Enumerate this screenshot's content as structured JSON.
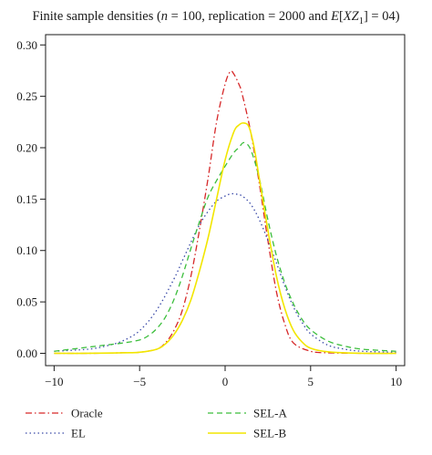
{
  "chart_data": {
    "type": "line",
    "title": {
      "prefix": "Finite sample densities (",
      "n_symbol": "n",
      "middle": " = 100, replication = 2000 and ",
      "e_symbol": "E",
      "bracket_open": "[",
      "xz_symbol": "XZ",
      "subscript": "1",
      "suffix": "] = 04)"
    },
    "xlabel": "",
    "ylabel": "",
    "xlim": [
      -10.5,
      10.5
    ],
    "ylim": [
      -0.012,
      0.31
    ],
    "xticks": [
      -10,
      -5,
      0,
      5,
      10
    ],
    "xtick_labels": [
      "−10",
      "−5",
      "0",
      "5",
      "10"
    ],
    "yticks": [
      0.0,
      0.05,
      0.1,
      0.15,
      0.2,
      0.25,
      0.3
    ],
    "ytick_labels": [
      "0.00",
      "0.05",
      "0.10",
      "0.15",
      "0.20",
      "0.25",
      "0.30"
    ],
    "grid": false,
    "legend_placement": "bottom",
    "series": [
      {
        "name": "Oracle",
        "color": "#d62728",
        "dash": "dashdot",
        "x": [
          -10,
          -8,
          -6,
          -5,
          -4,
          -3.5,
          -3,
          -2.5,
          -2,
          -1.5,
          -1,
          -0.5,
          0,
          0.3,
          0.5,
          0.8,
          1,
          1.5,
          2,
          2.5,
          3,
          3.5,
          4,
          5,
          6,
          8,
          10
        ],
        "y": [
          0.0,
          0.0,
          0.0005,
          0.001,
          0.004,
          0.01,
          0.022,
          0.042,
          0.075,
          0.12,
          0.17,
          0.225,
          0.262,
          0.274,
          0.272,
          0.262,
          0.252,
          0.215,
          0.165,
          0.11,
          0.06,
          0.028,
          0.01,
          0.002,
          0.0005,
          0.0,
          0.0
        ]
      },
      {
        "name": "EL",
        "color": "#3b4ba8",
        "dash": "dotted",
        "x": [
          -10,
          -8,
          -7,
          -6,
          -5,
          -4,
          -3,
          -2.5,
          -2,
          -1.5,
          -1,
          -0.5,
          0,
          0.3,
          0.6,
          1,
          1.5,
          2,
          2.5,
          3,
          3.5,
          4,
          4.5,
          5,
          6,
          7,
          8,
          10
        ],
        "y": [
          0.002,
          0.004,
          0.007,
          0.012,
          0.022,
          0.042,
          0.072,
          0.09,
          0.108,
          0.125,
          0.138,
          0.148,
          0.153,
          0.155,
          0.155,
          0.153,
          0.145,
          0.13,
          0.11,
          0.088,
          0.065,
          0.045,
          0.03,
          0.019,
          0.008,
          0.004,
          0.002,
          0.001
        ]
      },
      {
        "name": "SEL-A",
        "color": "#3cbe3c",
        "dash": "dashed",
        "x": [
          -10,
          -8,
          -7,
          -6,
          -5,
          -4.5,
          -4,
          -3.5,
          -3,
          -2.5,
          -2,
          -1.5,
          -1,
          -0.5,
          0,
          0.5,
          0.8,
          1.1,
          1.5,
          2,
          2.5,
          3,
          3.5,
          4,
          4.5,
          5,
          6,
          7,
          8,
          10
        ],
        "y": [
          0.002,
          0.006,
          0.008,
          0.01,
          0.013,
          0.017,
          0.024,
          0.035,
          0.052,
          0.075,
          0.102,
          0.128,
          0.152,
          0.168,
          0.182,
          0.195,
          0.2,
          0.205,
          0.198,
          0.17,
          0.13,
          0.095,
          0.068,
          0.048,
          0.033,
          0.023,
          0.012,
          0.007,
          0.004,
          0.002
        ]
      },
      {
        "name": "SEL-B",
        "color": "#f2e600",
        "dash": "solid",
        "x": [
          -10,
          -8,
          -6,
          -5,
          -4,
          -3.5,
          -3,
          -2.5,
          -2,
          -1.5,
          -1,
          -0.5,
          0,
          0.5,
          0.8,
          1.1,
          1.4,
          1.7,
          2,
          2.5,
          3,
          3.5,
          4,
          4.5,
          5,
          6,
          8,
          10
        ],
        "y": [
          0.0,
          0.0,
          0.0005,
          0.001,
          0.004,
          0.009,
          0.018,
          0.032,
          0.052,
          0.08,
          0.112,
          0.15,
          0.188,
          0.215,
          0.222,
          0.224,
          0.22,
          0.2,
          0.17,
          0.12,
          0.075,
          0.043,
          0.022,
          0.011,
          0.005,
          0.0015,
          0.0,
          0.0
        ]
      }
    ],
    "legend": [
      {
        "name": "Oracle",
        "color": "#d62728",
        "dash": "dashdot"
      },
      {
        "name": "EL",
        "color": "#3b4ba8",
        "dash": "dotted"
      },
      {
        "name": "SEL-A",
        "color": "#3cbe3c",
        "dash": "dashed"
      },
      {
        "name": "SEL-B",
        "color": "#f2e600",
        "dash": "solid"
      }
    ]
  }
}
